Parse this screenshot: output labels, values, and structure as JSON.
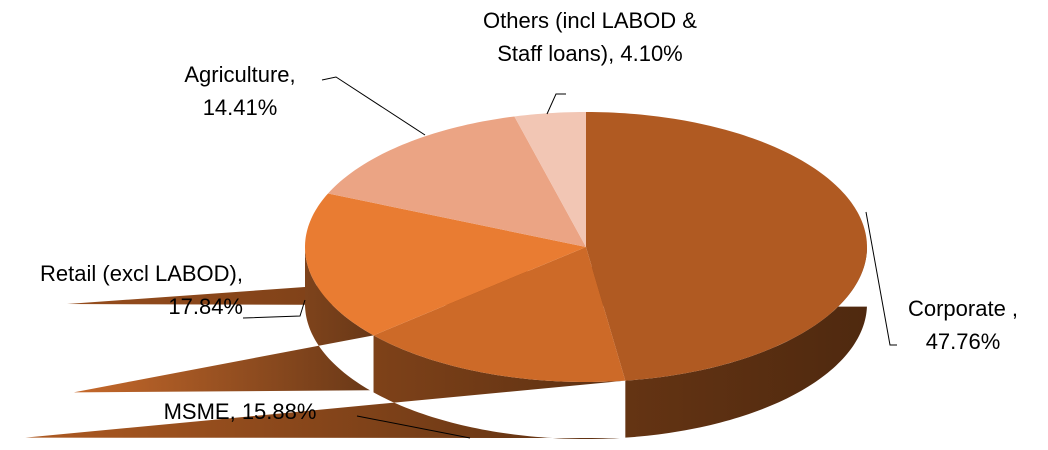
{
  "chart_data": {
    "type": "pie3d",
    "categories": [
      "Corporate ,",
      "MSME,",
      "Retail (excl LABOD),",
      "Agriculture,",
      "Others (incl LABOD & Staff loans),"
    ],
    "values": [
      47.76,
      15.88,
      17.84,
      14.41,
      4.1
    ],
    "value_labels": [
      "47.76%",
      "15.88%",
      "17.84%",
      "14.41%",
      "4.10%"
    ],
    "colors": [
      "#b05a22",
      "#cd6a28",
      "#e97c32",
      "#eba484",
      "#f2c6b4"
    ]
  }
}
